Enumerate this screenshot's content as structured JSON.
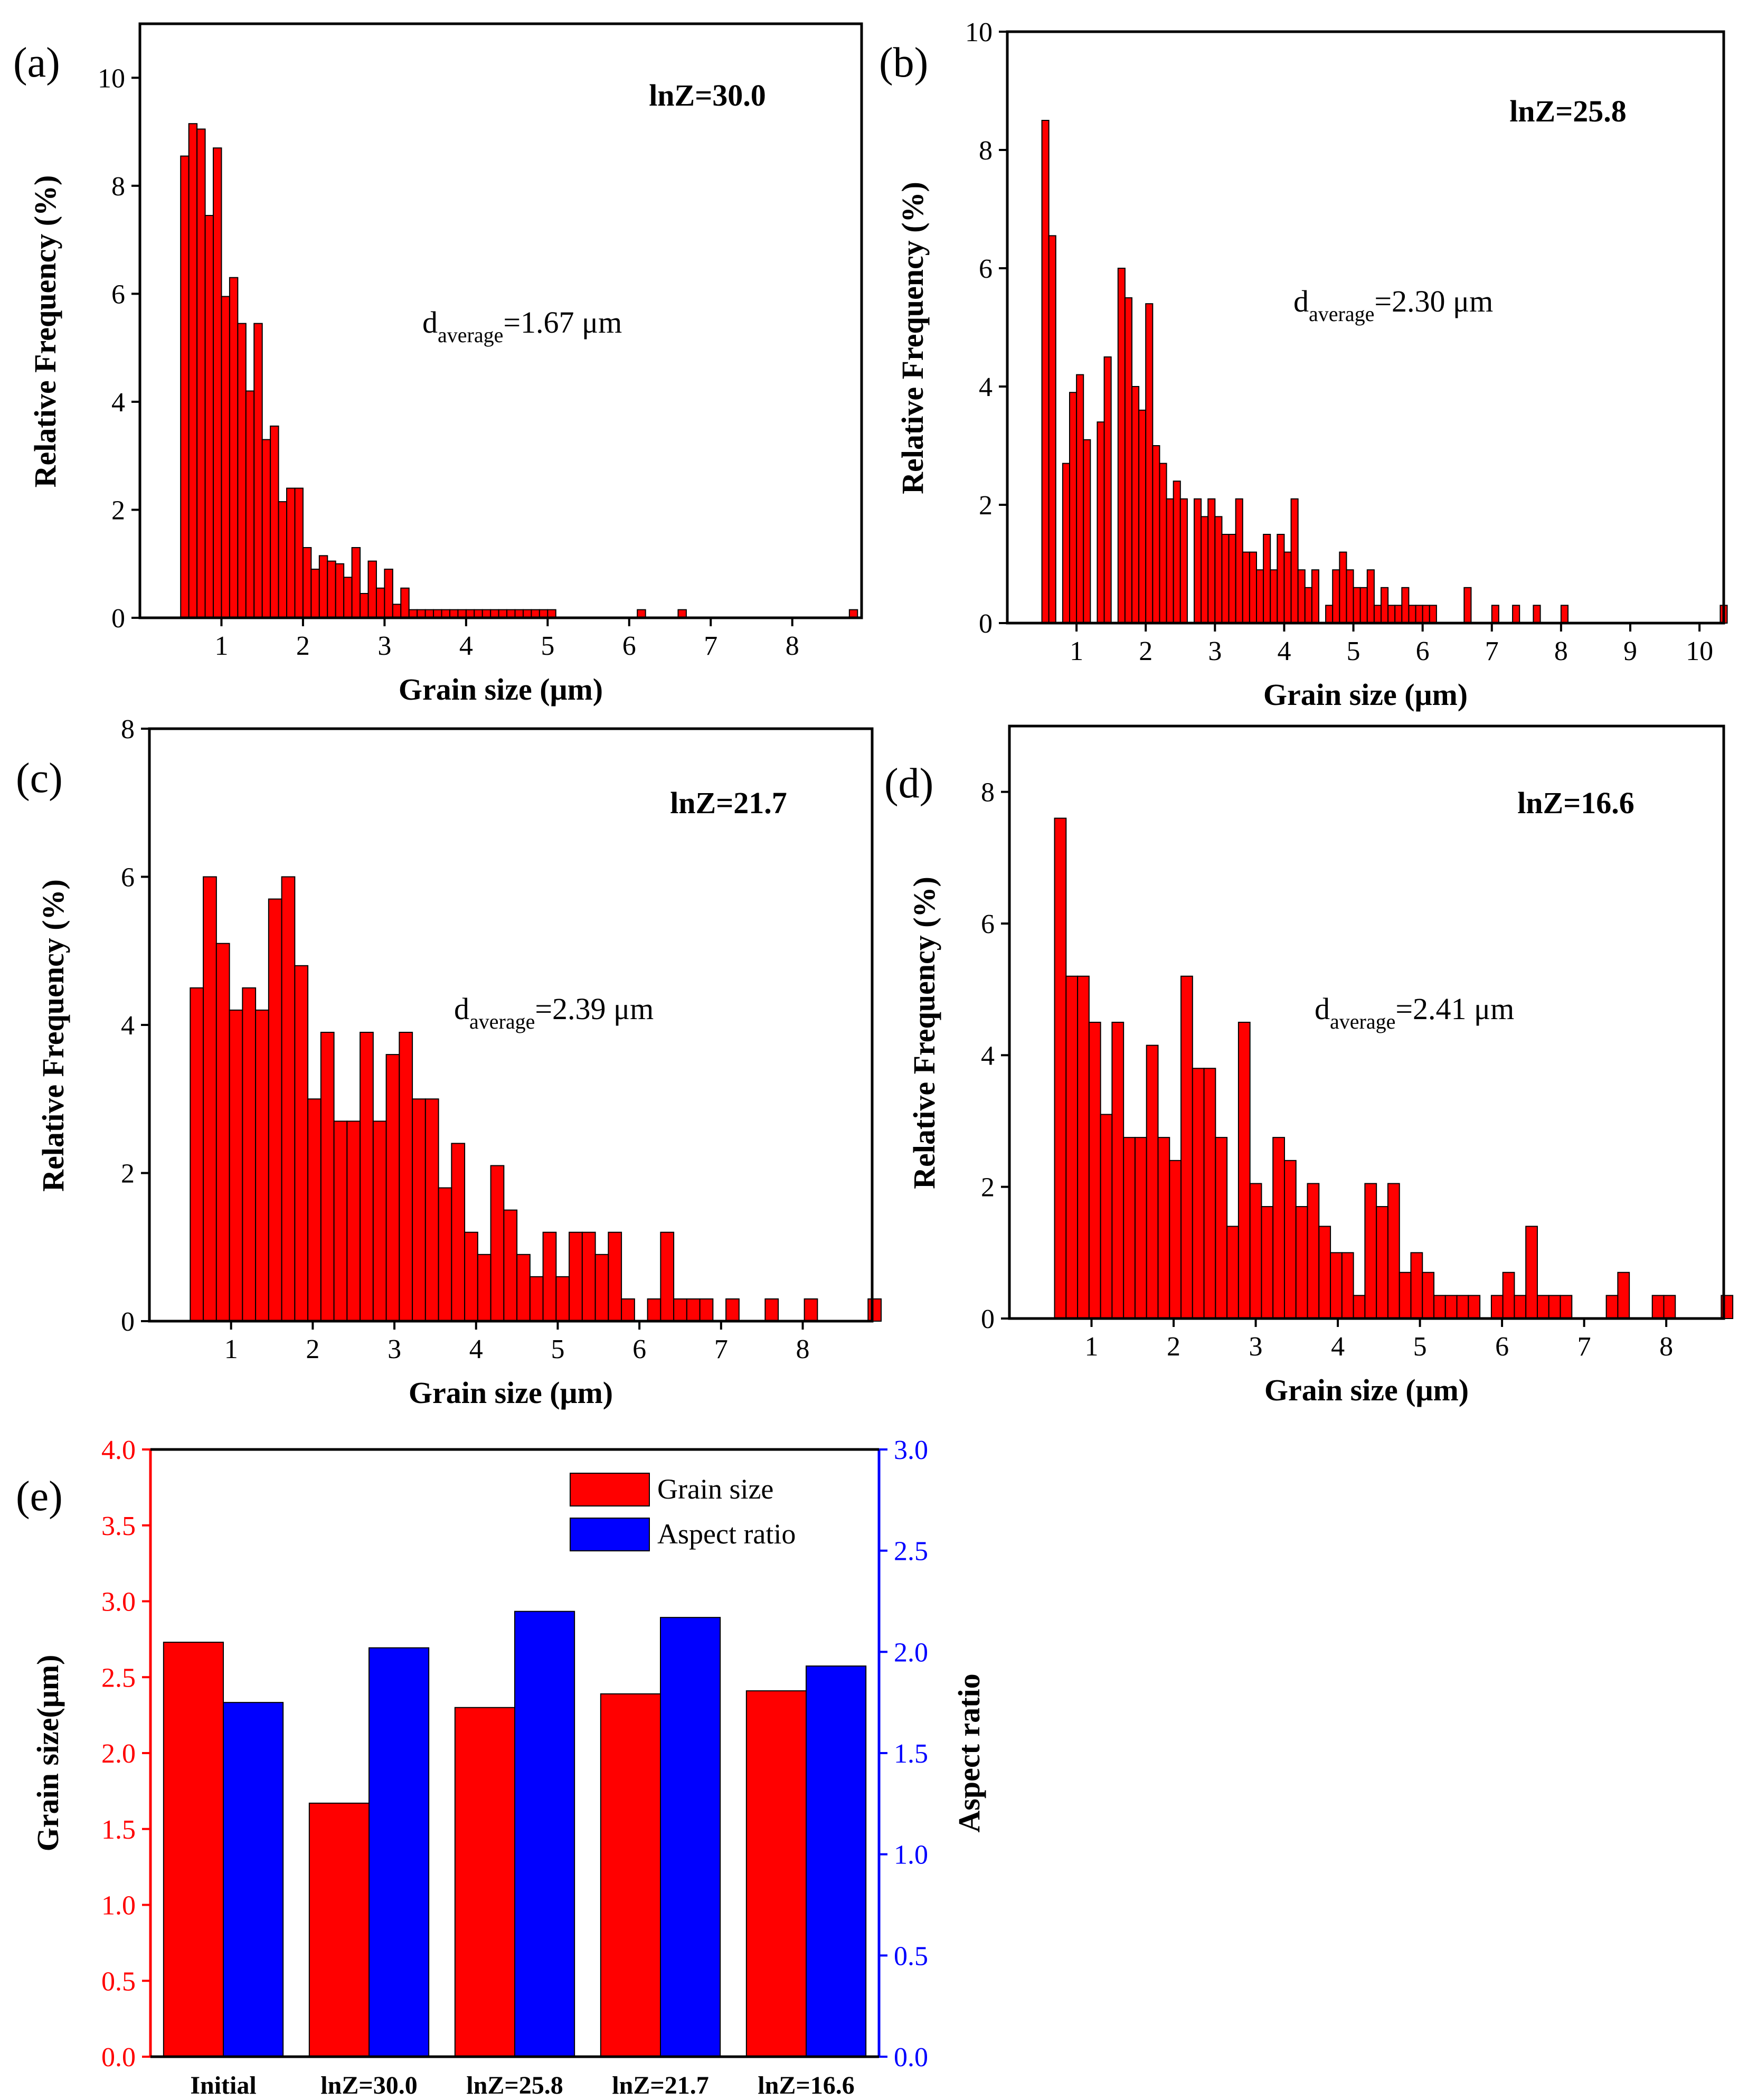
{
  "chart_data": [
    {
      "panel": "(a)",
      "type": "bar",
      "annotation": "lnZ=30.0",
      "average_main": "d",
      "average_sub": "average",
      "average_value": "=1.67 μm",
      "xlabel": "Grain size (μm)",
      "ylabel": "Relative Frequency (%)",
      "xlim": [
        0,
        8.85
      ],
      "ylim": [
        0,
        11
      ],
      "xticks": [
        1,
        2,
        3,
        4,
        5,
        6,
        7,
        8
      ],
      "yticks": [
        0,
        2,
        4,
        6,
        8,
        10
      ],
      "bin_width": 0.1,
      "x": [
        0.5,
        0.6,
        0.7,
        0.8,
        0.9,
        1.0,
        1.1,
        1.2,
        1.3,
        1.4,
        1.5,
        1.6,
        1.7,
        1.8,
        1.9,
        2.0,
        2.1,
        2.2,
        2.3,
        2.4,
        2.5,
        2.6,
        2.7,
        2.8,
        2.9,
        3.0,
        3.1,
        3.2,
        3.3,
        3.4,
        3.5,
        3.6,
        3.7,
        3.8,
        3.9,
        4.0,
        4.1,
        4.2,
        4.3,
        4.4,
        4.5,
        4.6,
        4.7,
        4.8,
        4.9,
        5.0,
        6.1,
        6.6,
        8.7
      ],
      "values": [
        8.55,
        9.15,
        9.05,
        7.45,
        8.7,
        5.95,
        6.3,
        5.45,
        4.2,
        5.45,
        3.3,
        3.55,
        2.15,
        2.4,
        2.4,
        1.3,
        0.9,
        1.15,
        1.05,
        1.0,
        0.75,
        1.3,
        0.45,
        1.05,
        0.55,
        0.9,
        0.25,
        0.55,
        0.15,
        0.15,
        0.15,
        0.15,
        0.15,
        0.15,
        0.15,
        0.15,
        0.15,
        0.15,
        0.15,
        0.15,
        0.15,
        0.15,
        0.15,
        0.15,
        0.15,
        0.15,
        0.15,
        0.15,
        0.15
      ]
    },
    {
      "panel": "(b)",
      "type": "bar",
      "annotation": "lnZ=25.8",
      "average_main": "d",
      "average_sub": "average",
      "average_value": "=2.30 μm",
      "xlabel": "Grain size (μm)",
      "ylabel": "Relative Frequency (%)",
      "xlim": [
        0,
        10.35
      ],
      "ylim": [
        0,
        10
      ],
      "xticks": [
        1,
        2,
        3,
        4,
        5,
        6,
        7,
        8,
        9,
        10
      ],
      "yticks": [
        0,
        2,
        4,
        6,
        8,
        10
      ],
      "bin_width": 0.1,
      "x": [
        0.5,
        0.6,
        0.8,
        0.9,
        1.0,
        1.1,
        1.3,
        1.4,
        1.6,
        1.7,
        1.8,
        1.9,
        2.0,
        2.1,
        2.2,
        2.3,
        2.4,
        2.5,
        2.7,
        2.8,
        2.9,
        3.0,
        3.1,
        3.2,
        3.3,
        3.4,
        3.5,
        3.6,
        3.7,
        3.8,
        3.9,
        4.0,
        4.1,
        4.2,
        4.3,
        4.4,
        4.6,
        4.7,
        4.8,
        4.9,
        5.0,
        5.1,
        5.2,
        5.3,
        5.4,
        5.5,
        5.6,
        5.7,
        5.8,
        5.9,
        6.0,
        6.1,
        6.6,
        7.0,
        7.3,
        7.6,
        8.0,
        10.3
      ],
      "values": [
        8.5,
        6.55,
        2.7,
        3.9,
        4.2,
        3.1,
        3.4,
        4.5,
        6.0,
        5.5,
        4.0,
        3.6,
        5.4,
        3.0,
        2.7,
        2.1,
        2.4,
        2.1,
        2.1,
        1.8,
        2.1,
        1.8,
        1.5,
        1.5,
        2.1,
        1.2,
        1.2,
        0.9,
        1.5,
        0.9,
        1.5,
        1.2,
        2.1,
        0.9,
        0.6,
        0.9,
        0.3,
        0.9,
        1.2,
        0.9,
        0.6,
        0.6,
        0.9,
        0.3,
        0.6,
        0.3,
        0.3,
        0.6,
        0.3,
        0.3,
        0.3,
        0.3,
        0.6,
        0.3,
        0.3,
        0.3,
        0.3,
        0.3
      ]
    },
    {
      "panel": "(c)",
      "type": "bar",
      "annotation": "lnZ=21.7",
      "average_main": "d",
      "average_sub": "average",
      "average_value": "=2.39 μm",
      "xlabel": "Grain size (μm)",
      "ylabel": "Relative Frequency (%)",
      "xlim": [
        0,
        8.85
      ],
      "ylim": [
        0,
        8
      ],
      "xticks": [
        1,
        2,
        3,
        4,
        5,
        6,
        7,
        8
      ],
      "yticks": [
        0,
        2,
        4,
        6,
        8
      ],
      "bin_width": 0.16,
      "x": [
        0.5,
        0.66,
        0.82,
        0.98,
        1.14,
        1.3,
        1.46,
        1.62,
        1.78,
        1.94,
        2.1,
        2.26,
        2.42,
        2.58,
        2.74,
        2.9,
        3.06,
        3.22,
        3.38,
        3.54,
        3.7,
        3.86,
        4.02,
        4.18,
        4.34,
        4.5,
        4.66,
        4.82,
        4.98,
        5.14,
        5.3,
        5.46,
        5.62,
        5.78,
        6.1,
        6.26,
        6.42,
        6.58,
        6.74,
        7.06,
        7.54,
        8.02,
        8.8
      ],
      "values": [
        4.5,
        6.0,
        5.1,
        4.2,
        4.5,
        4.2,
        5.7,
        6.0,
        4.8,
        3.0,
        3.9,
        2.7,
        2.7,
        3.9,
        2.7,
        3.6,
        3.9,
        3.0,
        3.0,
        1.8,
        2.4,
        1.2,
        0.9,
        2.1,
        1.5,
        0.9,
        0.6,
        1.2,
        0.6,
        1.2,
        1.2,
        0.9,
        1.2,
        0.3,
        0.3,
        1.2,
        0.3,
        0.3,
        0.3,
        0.3,
        0.3,
        0.3,
        0.3
      ]
    },
    {
      "panel": "(d)",
      "type": "bar",
      "annotation": "lnZ=16.6",
      "average_main": "d",
      "average_sub": "average",
      "average_value": "=2.41 μm",
      "xlabel": "Grain size (μm)",
      "ylabel": "Relative Frequency (%)",
      "xlim": [
        0,
        8.7
      ],
      "ylim": [
        0,
        9
      ],
      "xticks": [
        1,
        2,
        3,
        4,
        5,
        6,
        7,
        8
      ],
      "yticks": [
        0,
        2,
        4,
        6,
        8
      ],
      "bin_width": 0.14,
      "x": [
        0.55,
        0.69,
        0.83,
        0.97,
        1.11,
        1.25,
        1.39,
        1.53,
        1.67,
        1.81,
        1.95,
        2.09,
        2.23,
        2.37,
        2.51,
        2.65,
        2.79,
        2.93,
        3.07,
        3.21,
        3.35,
        3.49,
        3.63,
        3.77,
        3.91,
        4.05,
        4.19,
        4.33,
        4.47,
        4.61,
        4.75,
        4.89,
        5.03,
        5.17,
        5.31,
        5.45,
        5.59,
        5.87,
        6.01,
        6.15,
        6.29,
        6.43,
        6.57,
        6.71,
        7.27,
        7.41,
        7.83,
        7.97,
        8.67
      ],
      "values": [
        7.6,
        5.2,
        5.2,
        4.5,
        3.1,
        4.5,
        2.75,
        2.75,
        4.15,
        2.75,
        2.4,
        5.2,
        3.8,
        3.8,
        2.75,
        1.4,
        4.5,
        2.05,
        1.7,
        2.75,
        2.4,
        1.7,
        2.05,
        1.4,
        1.0,
        1.0,
        0.35,
        2.05,
        1.7,
        2.05,
        0.7,
        1.0,
        0.7,
        0.35,
        0.35,
        0.35,
        0.35,
        0.35,
        0.7,
        0.35,
        1.4,
        0.35,
        0.35,
        0.35,
        0.35,
        0.7,
        0.35,
        0.35,
        0.35
      ]
    },
    {
      "panel": "(e)",
      "type": "bar",
      "categories": [
        "Initial",
        "lnZ=30.0",
        "lnZ=25.8",
        "lnZ=21.7",
        "lnZ=16.6"
      ],
      "series": [
        {
          "name": "Grain size",
          "axis": "left",
          "color": "#ff0000",
          "values": [
            2.73,
            1.67,
            2.3,
            2.39,
            2.41
          ]
        },
        {
          "name": "Aspect ratio",
          "axis": "right",
          "color": "#0000ff",
          "values": [
            1.75,
            2.02,
            2.2,
            2.17,
            1.93
          ]
        }
      ],
      "ylabel": "Grain size(μm)",
      "ylabel_right": "Aspect ratio",
      "ylim": [
        0,
        4.0
      ],
      "ylim_right": [
        0,
        3.0
      ],
      "yticks": [
        "0.0",
        "0.5",
        "1.0",
        "1.5",
        "2.0",
        "2.5",
        "3.0",
        "3.5",
        "4.0"
      ],
      "yticks_right": [
        "0.0",
        "0.5",
        "1.0",
        "1.5",
        "2.0",
        "2.5",
        "3.0"
      ],
      "legend_position": "top-center"
    }
  ],
  "colors": {
    "hist_bar": "#ff0000",
    "bar_edge": "#000000",
    "left_axis": "#ff0000",
    "right_axis": "#0000ff",
    "aspect_bar": "#0000ff"
  }
}
